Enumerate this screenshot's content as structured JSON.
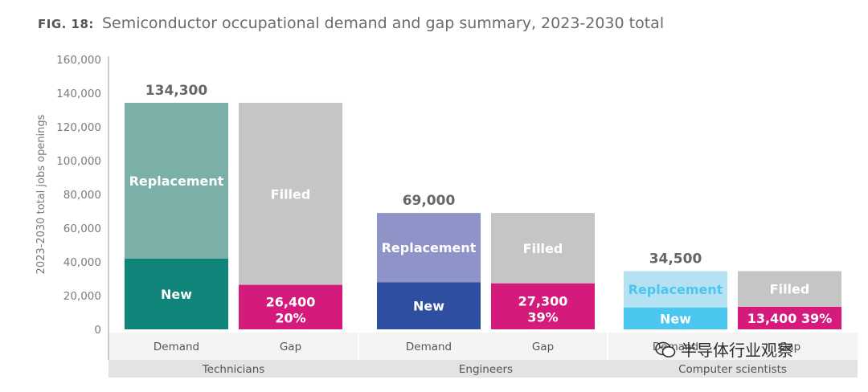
{
  "figure": {
    "label": "FIG. 18:",
    "title": "Semiconductor occupational demand and gap summary, 2023-2030 total"
  },
  "watermark": "半导体行业观察",
  "chart_data": {
    "type": "bar",
    "stacked": true,
    "ylabel": "2023-2030 total jobs openings",
    "ylim": [
      0,
      160000
    ],
    "yticks": [
      0,
      20000,
      40000,
      60000,
      80000,
      100000,
      120000,
      140000,
      160000
    ],
    "ytick_labels": [
      "0",
      "20,000",
      "40,000",
      "60,000",
      "80,000",
      "100,000",
      "120,000",
      "140,000",
      "160,000"
    ],
    "grid": false,
    "groups": [
      {
        "name": "Technicians",
        "total_label": "134,300",
        "bars": [
          {
            "category": "Demand",
            "segments": [
              {
                "name": "New",
                "value": 42000,
                "color": "#0e8578",
                "label": "New"
              },
              {
                "name": "Replacement",
                "value": 92300,
                "color": "#7ab0a8",
                "label": "Replacement"
              }
            ]
          },
          {
            "category": "Gap",
            "segments": [
              {
                "name": "Gap",
                "value": 26400,
                "color": "#d41b7c",
                "label": "26,400",
                "label2": "20%"
              },
              {
                "name": "Filled",
                "value": 107900,
                "color": "#c5c5c5",
                "label": "Filled"
              }
            ]
          }
        ]
      },
      {
        "name": "Engineers",
        "total_label": "69,000",
        "bars": [
          {
            "category": "Demand",
            "segments": [
              {
                "name": "New",
                "value": 28000,
                "color": "#2e4fa0",
                "label": "New"
              },
              {
                "name": "Replacement",
                "value": 41000,
                "color": "#8e93c8",
                "label": "Replacement"
              }
            ]
          },
          {
            "category": "Gap",
            "segments": [
              {
                "name": "Gap",
                "value": 27300,
                "color": "#d41b7c",
                "label": "27,300",
                "label2": "39%"
              },
              {
                "name": "Filled",
                "value": 41700,
                "color": "#c5c5c5",
                "label": "Filled"
              }
            ]
          }
        ]
      },
      {
        "name": "Computer scientists",
        "total_label": "34,500",
        "bars": [
          {
            "category": "Demand",
            "segments": [
              {
                "name": "New",
                "value": 13000,
                "color": "#4bc6ee",
                "label": "New"
              },
              {
                "name": "Replacement",
                "value": 21500,
                "color": "#b5e2f3",
                "label": "Replacement",
                "label_color": "#4bc6ee"
              }
            ]
          },
          {
            "category": "Gap",
            "segments": [
              {
                "name": "Gap",
                "value": 13400,
                "color": "#d41b7c",
                "label": "13,400  39%"
              },
              {
                "name": "Filled",
                "value": 21100,
                "color": "#c5c5c5",
                "label": "Filled"
              }
            ]
          }
        ]
      }
    ]
  }
}
